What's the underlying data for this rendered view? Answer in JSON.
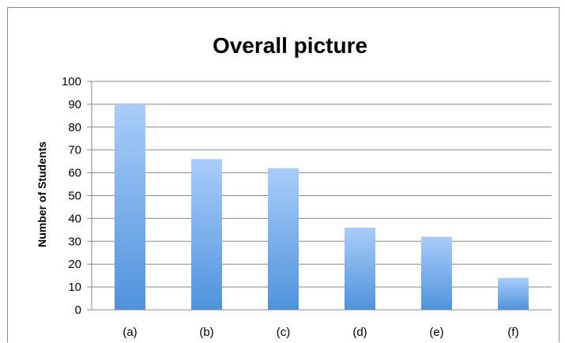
{
  "chart_data": {
    "type": "bar",
    "title": "Overall picture",
    "xlabel": "",
    "ylabel": "Number of Students",
    "categories": [
      "(a)",
      "(b)",
      "(c)",
      "(d)",
      "(e)",
      "(f)"
    ],
    "values": [
      90,
      66,
      62,
      36,
      32,
      14
    ],
    "ylim": [
      0,
      100
    ],
    "ytick_step": 10,
    "grid": true,
    "legend": "none",
    "colors": {
      "bar_top": "#a9cdfa",
      "bar_bottom": "#4f93dc",
      "grid": "#888888",
      "axis": "#888888"
    }
  }
}
